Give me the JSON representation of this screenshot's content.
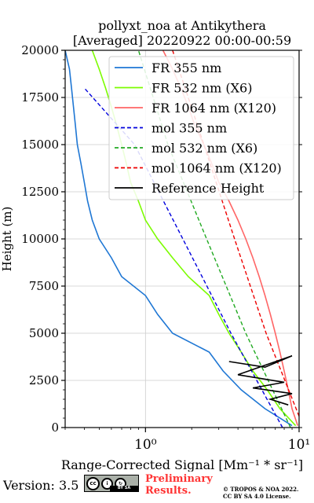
{
  "chart_data": {
    "type": "line",
    "title": "pollyxt_noa at Antikythera",
    "subtitle": "[Averaged] 20220922 00:00-00:59",
    "xlabel": "Range-Corrected Signal [Mm⁻¹ * sr⁻¹]",
    "ylabel": "Height (m)",
    "xscale": "log",
    "xlim": [
      0.3,
      10
    ],
    "ylim": [
      0,
      20000
    ],
    "x_ticks": [
      {
        "value": 1,
        "label": "10⁰"
      },
      {
        "value": 10,
        "label": "10¹"
      }
    ],
    "y_ticks": [
      0,
      2500,
      5000,
      7500,
      10000,
      12500,
      15000,
      17500,
      20000
    ],
    "grid": true,
    "legend_position": "top-right",
    "series": [
      {
        "name": "FR 355 nm",
        "color": "#1f77d4",
        "style": "solid",
        "points": [
          [
            9.0,
            100
          ],
          [
            6.0,
            1000
          ],
          [
            4.2,
            2000
          ],
          [
            3.2,
            3000
          ],
          [
            2.6,
            4000
          ],
          [
            1.5,
            5000
          ],
          [
            1.2,
            6000
          ],
          [
            1.0,
            7000
          ],
          [
            0.7,
            8000
          ],
          [
            0.6,
            9000
          ],
          [
            0.5,
            10000
          ],
          [
            0.45,
            11000
          ],
          [
            0.42,
            12000
          ],
          [
            0.4,
            13000
          ],
          [
            0.38,
            14000
          ],
          [
            0.36,
            15000
          ],
          [
            0.35,
            16000
          ],
          [
            0.34,
            17000
          ],
          [
            0.33,
            18000
          ],
          [
            0.32,
            19000
          ],
          [
            0.3,
            20000
          ]
        ]
      },
      {
        "name": "FR 532 nm (X6)",
        "color": "#7cfc00",
        "style": "solid",
        "points": [
          [
            9.5,
            100
          ],
          [
            7.5,
            1000
          ],
          [
            6.2,
            2000
          ],
          [
            5.0,
            3000
          ],
          [
            4.2,
            4000
          ],
          [
            3.5,
            5000
          ],
          [
            3.0,
            6000
          ],
          [
            2.6,
            7000
          ],
          [
            1.9,
            8000
          ],
          [
            1.5,
            9000
          ],
          [
            1.2,
            10000
          ],
          [
            1.0,
            11000
          ],
          [
            0.9,
            12000
          ],
          [
            0.8,
            13000
          ],
          [
            0.75,
            14000
          ],
          [
            0.7,
            15000
          ],
          [
            0.65,
            16000
          ],
          [
            0.6,
            17000
          ],
          [
            0.55,
            18000
          ],
          [
            0.5,
            19000
          ],
          [
            0.45,
            20000
          ]
        ]
      },
      {
        "name": "FR 1064 nm (X120)",
        "color": "#ff6666",
        "style": "solid",
        "points": [
          [
            9.8,
            100
          ],
          [
            9.0,
            1000
          ],
          [
            8.5,
            2000
          ],
          [
            8.0,
            3000
          ],
          [
            7.5,
            4000
          ],
          [
            7.0,
            5000
          ],
          [
            6.5,
            6000
          ],
          [
            6.0,
            7000
          ],
          [
            5.5,
            8000
          ],
          [
            5.0,
            9000
          ],
          [
            4.5,
            10000
          ],
          [
            4.0,
            11000
          ],
          [
            3.5,
            12000
          ],
          [
            3.0,
            13000
          ],
          [
            2.7,
            14000
          ],
          [
            2.4,
            15000
          ],
          [
            2.1,
            16000
          ],
          [
            1.9,
            17000
          ],
          [
            1.7,
            18000
          ],
          [
            1.5,
            19000
          ],
          [
            1.3,
            20000
          ]
        ]
      },
      {
        "name": "mol 355 nm",
        "color": "#0000dd",
        "style": "dashed",
        "points": [
          [
            7.8,
            0
          ],
          [
            3.6,
            5000
          ],
          [
            1.75,
            10000
          ],
          [
            0.85,
            15000
          ],
          [
            0.4,
            18000
          ]
        ]
      },
      {
        "name": "mol 532 nm (X6)",
        "color": "#22aa22",
        "style": "dashed",
        "points": [
          [
            8.8,
            0
          ],
          [
            4.5,
            5000
          ],
          [
            2.5,
            10000
          ],
          [
            1.4,
            15000
          ],
          [
            0.9,
            20000
          ]
        ]
      },
      {
        "name": "mol 1064 nm (X120)",
        "color": "#ee0000",
        "style": "dashed",
        "points": [
          [
            10,
            600
          ],
          [
            6.1,
            5000
          ],
          [
            3.8,
            10000
          ],
          [
            2.4,
            15000
          ],
          [
            1.5,
            20000
          ]
        ]
      },
      {
        "name": "Reference Height",
        "color": "#000000",
        "style": "solid",
        "points": [
          [
            3.5,
            3500
          ],
          [
            6.0,
            3200
          ],
          [
            9.0,
            3800
          ],
          [
            4.0,
            2800
          ],
          [
            8.0,
            2400
          ],
          [
            5.0,
            2100
          ],
          [
            9.0,
            1800
          ],
          [
            6.5,
            1500
          ],
          [
            8.5,
            1200
          ]
        ]
      }
    ]
  },
  "footer": {
    "version": "Version: 3.5",
    "license_badge": "BY    SA",
    "prelim_line1": "Preliminary",
    "prelim_line2": "Results.",
    "copyright_line1": "© TROPOS & NOA 2022.",
    "copyright_line2": "CC BY SA 4.0 License."
  }
}
